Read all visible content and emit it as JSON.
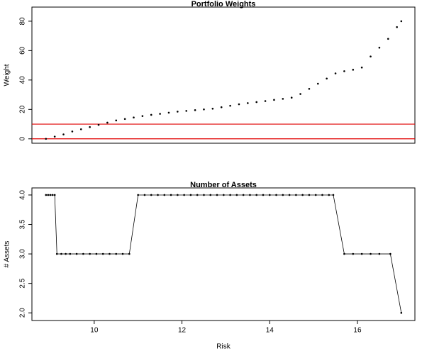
{
  "chart_data": [
    {
      "type": "scatter",
      "title": "Portfolio Weights",
      "ylabel": "Weight",
      "color": "#000000",
      "x": [
        8.9,
        9.1,
        9.3,
        9.5,
        9.7,
        9.9,
        10.1,
        10.3,
        10.5,
        10.7,
        10.9,
        11.1,
        11.3,
        11.5,
        11.7,
        11.9,
        12.1,
        12.3,
        12.5,
        12.7,
        12.9,
        13.1,
        13.3,
        13.5,
        13.7,
        13.9,
        14.1,
        14.3,
        14.5,
        14.7,
        14.9,
        15.1,
        15.3,
        15.5,
        15.7,
        15.9,
        16.1,
        16.3,
        16.5,
        16.7,
        16.9,
        17.0
      ],
      "values": [
        0,
        1.5,
        3,
        5,
        6.5,
        8,
        9.5,
        11,
        12.5,
        13.5,
        14.5,
        15.5,
        16.3,
        17,
        17.8,
        18.5,
        19,
        19.5,
        20,
        20.5,
        21.5,
        22.5,
        23.5,
        24.3,
        25,
        25.7,
        26.5,
        27.2,
        28,
        30.5,
        34,
        37.5,
        41,
        44.5,
        46,
        47,
        48.5,
        56,
        62,
        68,
        76,
        80
      ],
      "xlim": [
        8.58,
        17.31
      ],
      "ylim": [
        -3,
        89.6
      ],
      "yticks": [
        0,
        20,
        40,
        60,
        80
      ],
      "hlines": [
        0,
        10
      ],
      "hline_color": "#e00000"
    },
    {
      "type": "line",
      "title": "Number of Assets",
      "ylabel": "# Assets",
      "xlabel": "Risk",
      "color": "#000000",
      "x": [
        8.9,
        8.95,
        9.0,
        9.05,
        9.1,
        9.15,
        9.25,
        9.35,
        9.45,
        9.6,
        9.75,
        9.9,
        10.05,
        10.2,
        10.35,
        10.5,
        10.65,
        10.8,
        11.0,
        11.15,
        11.3,
        11.45,
        11.6,
        11.75,
        11.9,
        12.05,
        12.2,
        12.35,
        12.5,
        12.65,
        12.8,
        12.95,
        13.1,
        13.25,
        13.4,
        13.55,
        13.7,
        13.85,
        14.0,
        14.15,
        14.3,
        14.45,
        14.6,
        14.75,
        14.9,
        15.05,
        15.2,
        15.35,
        15.45,
        15.7,
        15.9,
        16.1,
        16.3,
        16.5,
        16.75,
        17.0
      ],
      "values": [
        4,
        4,
        4,
        4,
        4,
        3,
        3,
        3,
        3,
        3,
        3,
        3,
        3,
        3,
        3,
        3,
        3,
        3,
        4,
        4,
        4,
        4,
        4,
        4,
        4,
        4,
        4,
        4,
        4,
        4,
        4,
        4,
        4,
        4,
        4,
        4,
        4,
        4,
        4,
        4,
        4,
        4,
        4,
        4,
        4,
        4,
        4,
        4,
        4,
        3,
        3,
        3,
        3,
        3,
        3,
        2
      ],
      "xlim": [
        8.58,
        17.31
      ],
      "ylim": [
        1.87,
        4.12
      ],
      "xticks": [
        10,
        12,
        14,
        16
      ],
      "yticks": [
        {
          "value": 2,
          "label": "2.0"
        },
        {
          "value": 2.5,
          "label": "2.5"
        },
        {
          "value": 3,
          "label": "3.0"
        },
        {
          "value": 3.5,
          "label": "3.5"
        },
        {
          "value": 4,
          "label": "4.0"
        }
      ]
    }
  ]
}
